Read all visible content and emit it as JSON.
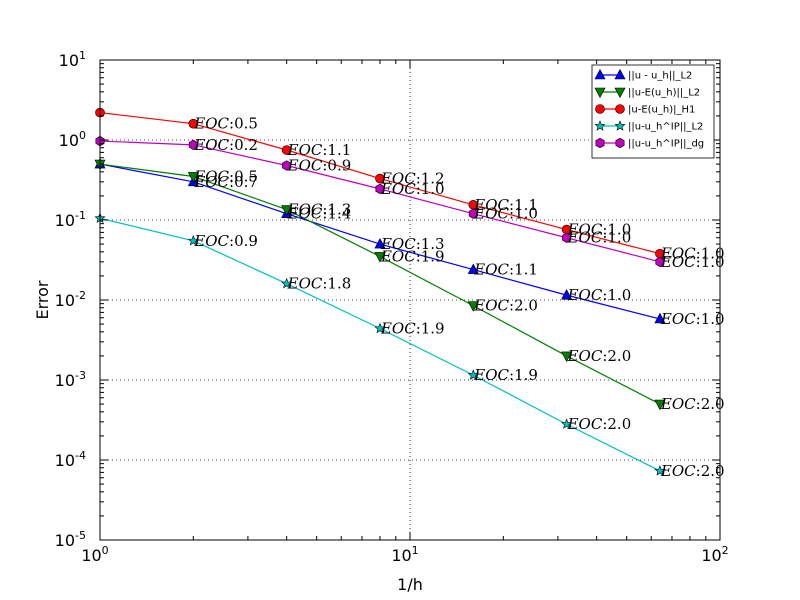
{
  "chart_data": {
    "type": "line",
    "title": "",
    "xlabel": "1/h",
    "ylabel": "Error",
    "xscale": "log",
    "yscale": "log",
    "xlim": [
      1,
      100
    ],
    "ylim": [
      1e-05,
      10
    ],
    "grid": true,
    "legend_position": "top-right",
    "x_ticks": [
      {
        "value": 1,
        "base": "10",
        "exp": "0"
      },
      {
        "value": 10,
        "base": "10",
        "exp": "1"
      },
      {
        "value": 100,
        "base": "10",
        "exp": "2"
      }
    ],
    "y_ticks": [
      {
        "value": 1e-05,
        "base": "10",
        "exp": "-5"
      },
      {
        "value": 0.0001,
        "base": "10",
        "exp": "-4"
      },
      {
        "value": 0.001,
        "base": "10",
        "exp": "-3"
      },
      {
        "value": 0.01,
        "base": "10",
        "exp": "-2"
      },
      {
        "value": 0.1,
        "base": "10",
        "exp": "-1"
      },
      {
        "value": 1,
        "base": "10",
        "exp": "0"
      },
      {
        "value": 10,
        "base": "10",
        "exp": "1"
      }
    ],
    "x": [
      1,
      2,
      4,
      8,
      16,
      32,
      64
    ],
    "eoc_prefix": "EOC",
    "series": [
      {
        "name": "||u - u_h||_L2",
        "color": "#0000ff",
        "marker": "triangle-up",
        "values": [
          0.5,
          0.3,
          0.12,
          0.05,
          0.024,
          0.0115,
          0.0058
        ],
        "eoc": [
          "",
          "0.7",
          "1.4",
          "1.3",
          "1.1",
          "1.0",
          "1.0"
        ]
      },
      {
        "name": "||u-E(u_h)||_L2",
        "color": "#007f00",
        "marker": "triangle-down",
        "values": [
          0.5,
          0.35,
          0.135,
          0.035,
          0.0085,
          0.002,
          0.0005
        ],
        "eoc": [
          "",
          "0.5",
          "1.3",
          "1.9",
          "2.0",
          "2.0",
          "2.0"
        ]
      },
      {
        "name": "|u-E(u_h)|_H1",
        "color": "#ff0000",
        "marker": "circle",
        "values": [
          2.2,
          1.6,
          0.75,
          0.33,
          0.155,
          0.076,
          0.038
        ],
        "eoc": [
          "",
          "0.5",
          "1.1",
          "1.2",
          "1.1",
          "1.0",
          "1.0"
        ]
      },
      {
        "name": "||u-u_h^IP||_L2",
        "color": "#00bfbf",
        "marker": "star",
        "values": [
          0.105,
          0.055,
          0.016,
          0.0044,
          0.00115,
          0.00028,
          7.3e-05
        ],
        "eoc": [
          "",
          "0.9",
          "1.8",
          "1.9",
          "1.9",
          "2.0",
          "2.0"
        ]
      },
      {
        "name": "||u-u_h^IP||_dg",
        "color": "#bf00bf",
        "marker": "hexagon",
        "values": [
          0.97,
          0.87,
          0.48,
          0.245,
          0.12,
          0.06,
          0.03
        ],
        "eoc": [
          "",
          "0.2",
          "0.9",
          "1.0",
          "1.0",
          "1.0",
          "1.0"
        ]
      }
    ]
  }
}
